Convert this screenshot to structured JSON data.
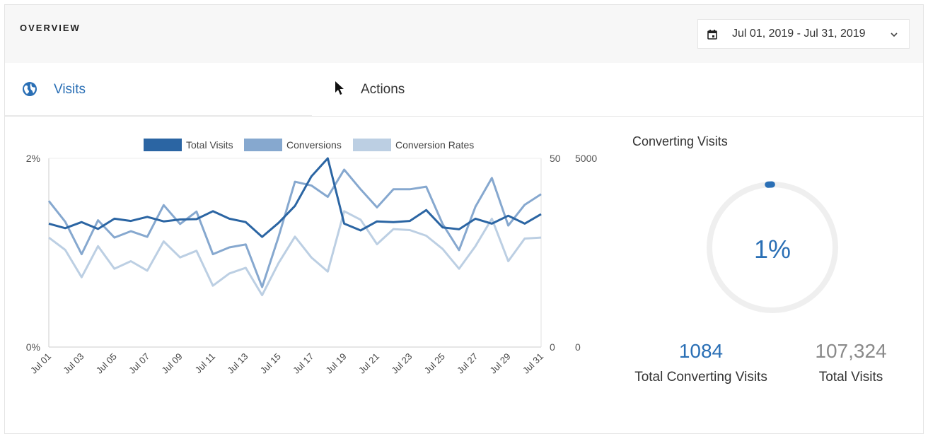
{
  "header": {
    "title": "OVERVIEW"
  },
  "date_range": {
    "label": "Jul 01, 2019 - Jul 31, 2019",
    "icon": "calendar-icon",
    "dropdown_icon": "chevron-down-icon"
  },
  "tabs": [
    {
      "label": "Visits",
      "icon": "globe-icon",
      "active": true
    },
    {
      "label": "Actions",
      "icon": "cursor-icon",
      "active": false
    }
  ],
  "colors": {
    "total_visits": "#2b65a3",
    "conversions": "#86a8cf",
    "conversion_rates": "#bccfe3",
    "accent": "#2a6fb5"
  },
  "chart_data": {
    "type": "line",
    "x": [
      "Jul 01",
      "Jul 02",
      "Jul 03",
      "Jul 04",
      "Jul 05",
      "Jul 06",
      "Jul 07",
      "Jul 08",
      "Jul 09",
      "Jul 10",
      "Jul 11",
      "Jul 12",
      "Jul 13",
      "Jul 14",
      "Jul 15",
      "Jul 16",
      "Jul 17",
      "Jul 18",
      "Jul 19",
      "Jul 20",
      "Jul 21",
      "Jul 22",
      "Jul 23",
      "Jul 24",
      "Jul 25",
      "Jul 26",
      "Jul 27",
      "Jul 28",
      "Jul 29",
      "Jul 30",
      "Jul 31"
    ],
    "x_tick_labels": [
      "Jul 01",
      "Jul 03",
      "Jul 05",
      "Jul 07",
      "Jul 09",
      "Jul 11",
      "Jul 13",
      "Jul 15",
      "Jul 17",
      "Jul 19",
      "Jul 21",
      "Jul 23",
      "Jul 25",
      "Jul 27",
      "Jul 29",
      "Jul 31"
    ],
    "axes": {
      "left": {
        "ticks": [
          "2%",
          "0%"
        ],
        "range": [
          0,
          2
        ]
      },
      "mid": {
        "ticks": [
          "50",
          "0"
        ],
        "range": [
          0,
          50
        ]
      },
      "right": {
        "ticks": [
          "5000",
          "0"
        ],
        "range": [
          0,
          5000
        ]
      }
    },
    "legend_position": "top",
    "series": [
      {
        "name": "Total Visits",
        "axis": "right",
        "color": "#2b65a3",
        "values": [
          3270,
          3150,
          3310,
          3130,
          3400,
          3340,
          3450,
          3330,
          3380,
          3390,
          3600,
          3400,
          3310,
          2920,
          3290,
          3740,
          4520,
          5000,
          3270,
          3090,
          3330,
          3310,
          3340,
          3630,
          3170,
          3120,
          3400,
          3270,
          3480,
          3270,
          3520
        ]
      },
      {
        "name": "Conversions",
        "axis": "mid",
        "color": "#86a8cf",
        "values": [
          38.7,
          33.2,
          24.6,
          33.6,
          29.0,
          30.7,
          29.2,
          37.6,
          32.6,
          35.9,
          24.6,
          26.4,
          27.2,
          15.9,
          29.2,
          43.8,
          42.8,
          39.8,
          47.0,
          41.8,
          37.0,
          41.8,
          41.8,
          42.5,
          32.6,
          25.7,
          37.2,
          44.8,
          32.2,
          37.7,
          40.5
        ]
      },
      {
        "name": "Conversion Rates",
        "axis": "left",
        "color": "#bccfe3",
        "values": [
          1.16,
          1.03,
          0.74,
          1.07,
          0.83,
          0.91,
          0.81,
          1.12,
          0.95,
          1.02,
          0.65,
          0.78,
          0.84,
          0.55,
          0.89,
          1.17,
          0.95,
          0.8,
          1.44,
          1.35,
          1.09,
          1.25,
          1.24,
          1.18,
          1.04,
          0.83,
          1.07,
          1.36,
          0.91,
          1.15,
          1.16
        ]
      }
    ]
  },
  "sidebar": {
    "title": "Converting Visits",
    "percent_label": "1%",
    "percent_value": 1,
    "total_converting": "1084",
    "total_converting_label": "Total Converting Visits",
    "total_visits": "107,324",
    "total_visits_label": "Total Visits"
  }
}
